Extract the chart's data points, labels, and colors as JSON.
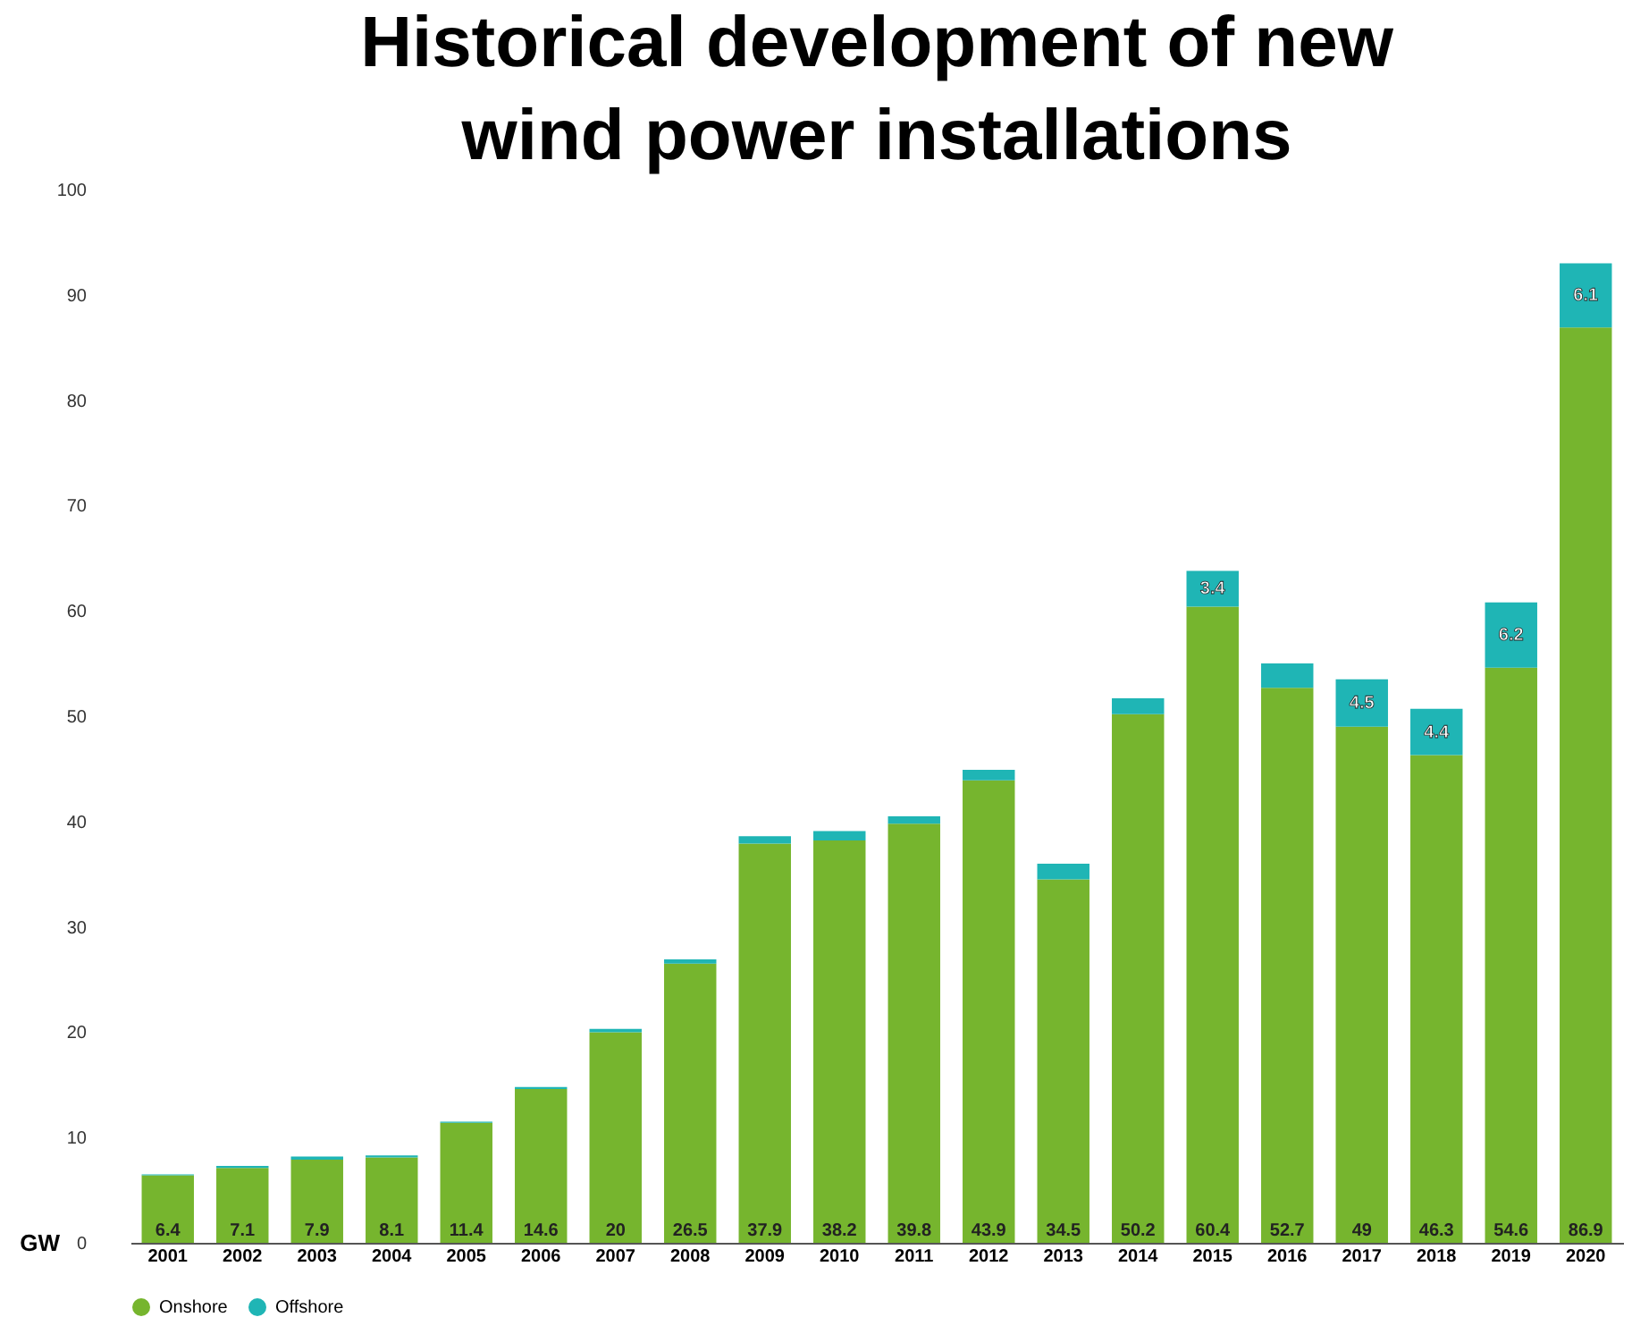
{
  "chart_data": {
    "type": "bar",
    "title": [
      "Historical development of new",
      "wind power installations"
    ],
    "ylabel": "GW",
    "categories": [
      "2001",
      "2002",
      "2003",
      "2004",
      "2005",
      "2006",
      "2007",
      "2008",
      "2009",
      "2010",
      "2011",
      "2012",
      "2013",
      "2014",
      "2015",
      "2016",
      "2017",
      "2018",
      "2019",
      "2020"
    ],
    "stacked": true,
    "ylim": [
      0,
      100
    ],
    "yticks": [
      0,
      10,
      20,
      30,
      40,
      50,
      60,
      70,
      80,
      90,
      100
    ],
    "grid": false,
    "legend": "bottom",
    "series": [
      {
        "name": "Onshore",
        "color": "#76b52e",
        "values": [
          6.4,
          7.1,
          7.9,
          8.1,
          11.4,
          14.6,
          20,
          26.5,
          37.9,
          38.2,
          39.8,
          43.9,
          34.5,
          50.2,
          60.4,
          52.7,
          49,
          46.3,
          54.6,
          86.9
        ],
        "value_labels": [
          "6.4",
          "7.1",
          "7.9",
          "8.1",
          "11.4",
          "14.6",
          "20",
          "26.5",
          "37.9",
          "38.2",
          "39.8",
          "43.9",
          "34.5",
          "50.2",
          "60.4",
          "52.7",
          "49",
          "46.3",
          "54.6",
          "86.9"
        ]
      },
      {
        "name": "Offshore",
        "color": "#1fb5b5",
        "values": [
          0.1,
          0.2,
          0.3,
          0.2,
          0.1,
          0.2,
          0.3,
          0.4,
          0.7,
          0.9,
          0.7,
          1.0,
          1.5,
          1.5,
          3.4,
          2.3,
          4.5,
          4.4,
          6.2,
          6.1
        ],
        "value_labels": [
          null,
          null,
          null,
          null,
          null,
          null,
          null,
          null,
          null,
          null,
          null,
          null,
          null,
          null,
          "3.4",
          null,
          "4.5",
          "4.4",
          "6.2",
          "6.1"
        ]
      }
    ]
  }
}
